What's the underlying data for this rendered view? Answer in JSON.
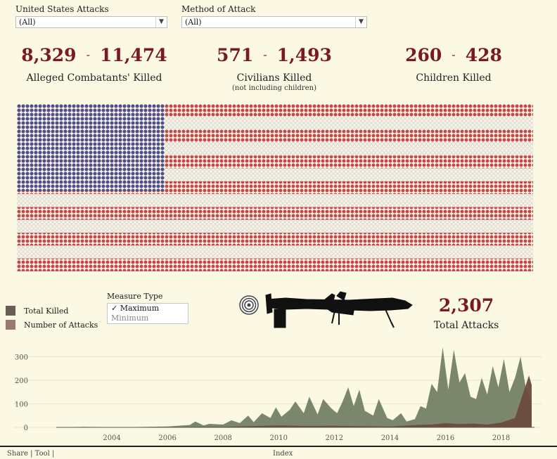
{
  "filters": [
    {
      "label": "United States Attacks",
      "value": "(All)"
    },
    {
      "label": "Method of Attack",
      "value": "(All)"
    }
  ],
  "kpis": [
    {
      "low": "8,329",
      "dash": "-",
      "high": "11,474",
      "label": "Alleged Combatants' Killed",
      "sub": ""
    },
    {
      "low": "571",
      "dash": "-",
      "high": "1,493",
      "label": "Civilians Killed",
      "sub": "(not including children)"
    },
    {
      "low": "260",
      "dash": "-",
      "high": "428",
      "label": "Children Killed",
      "sub": ""
    }
  ],
  "legend": [
    {
      "label": "Total Killed",
      "color": "#6b5e55"
    },
    {
      "label": "Number of Attacks",
      "color": "#9a7a6e"
    }
  ],
  "measure_type": {
    "label": "Measure Type",
    "options": [
      "✓ Maximum",
      "Minimum"
    ]
  },
  "total_attacks": {
    "value": "2,307",
    "label": "Total Attacks"
  },
  "colors": {
    "flag_blue": "#4e4f8f",
    "flag_red": "#c7474e",
    "flag_white": "#e1e0d8",
    "area_green": "#6d7a5e",
    "area_brown": "#6b4a3e",
    "accent": "#7b1a1e"
  },
  "icons": [
    "target-icon",
    "drone-icon",
    "dropdown-arrow-icon"
  ],
  "chart_data": {
    "type": "area",
    "x_ticks": [
      "2004",
      "2006",
      "2008",
      "2010",
      "2012",
      "2014",
      "2016",
      "2018"
    ],
    "y_ticks": [
      "300",
      "200",
      "100",
      "0"
    ],
    "ylim": [
      0,
      340
    ],
    "series": [
      {
        "name": "Total Killed",
        "x": [
          2002.0,
          2003.0,
          2004.5,
          2006.0,
          2006.8,
          2007.0,
          2007.3,
          2007.5,
          2008.0,
          2008.3,
          2008.6,
          2008.9,
          2009.1,
          2009.4,
          2009.7,
          2009.9,
          2010.1,
          2010.4,
          2010.6,
          2010.9,
          2011.1,
          2011.4,
          2011.6,
          2011.9,
          2012.1,
          2012.3,
          2012.5,
          2012.7,
          2012.9,
          2013.1,
          2013.4,
          2013.6,
          2013.9,
          2014.1,
          2014.4,
          2014.6,
          2014.9,
          2015.1,
          2015.3,
          2015.5,
          2015.7,
          2015.9,
          2016.1,
          2016.3,
          2016.5,
          2016.7,
          2016.9,
          2017.1,
          2017.3,
          2017.5,
          2017.7,
          2017.9,
          2018.1,
          2018.3,
          2018.5,
          2018.7,
          2018.9,
          2019.1
        ],
        "values": [
          0,
          2,
          1,
          4,
          10,
          25,
          8,
          15,
          12,
          30,
          18,
          50,
          22,
          60,
          40,
          85,
          45,
          75,
          110,
          60,
          130,
          55,
          120,
          80,
          60,
          110,
          170,
          90,
          160,
          70,
          50,
          120,
          40,
          30,
          60,
          25,
          35,
          90,
          80,
          185,
          150,
          340,
          160,
          330,
          190,
          230,
          130,
          120,
          210,
          140,
          260,
          170,
          290,
          150,
          210,
          300,
          160,
          110
        ]
      },
      {
        "name": "Number of Attacks",
        "x": [
          2002.0,
          2008.0,
          2009.0,
          2010.0,
          2011.0,
          2012.0,
          2013.0,
          2014.0,
          2015.0,
          2015.5,
          2016.0,
          2016.5,
          2017.0,
          2017.5,
          2018.0,
          2018.5,
          2019.0,
          2019.1
        ],
        "values": [
          0,
          2,
          5,
          8,
          6,
          7,
          5,
          4,
          10,
          12,
          18,
          14,
          16,
          12,
          20,
          40,
          220,
          180
        ]
      }
    ]
  },
  "footer": [
    "Share | Tool |",
    "Index"
  ]
}
